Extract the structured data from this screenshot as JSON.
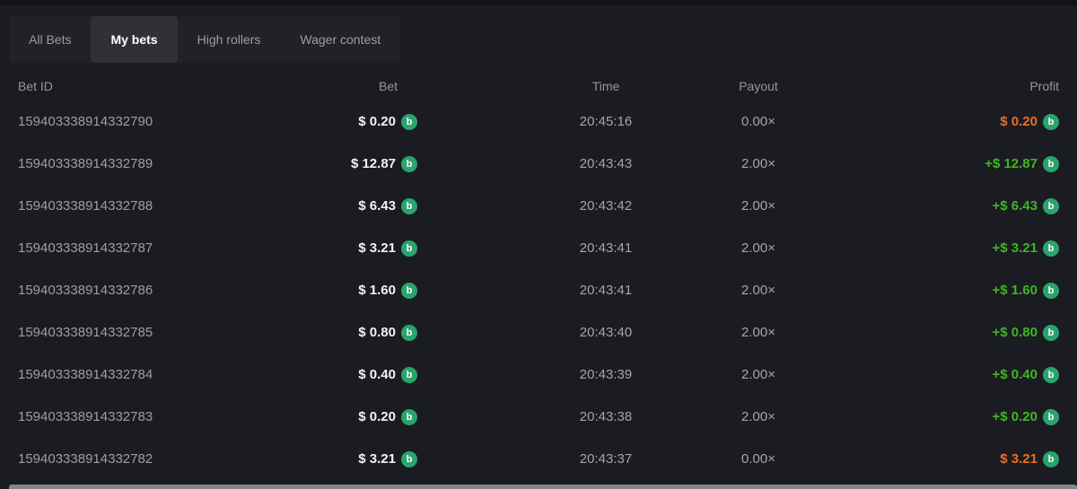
{
  "tabs": {
    "items": [
      {
        "label": "All Bets",
        "active": false
      },
      {
        "label": "My bets",
        "active": true
      },
      {
        "label": "High rollers",
        "active": false
      },
      {
        "label": "Wager contest",
        "active": false
      }
    ]
  },
  "table": {
    "columns": {
      "bet_id": "Bet ID",
      "bet": "Bet",
      "time": "Time",
      "payout": "Payout",
      "profit": "Profit"
    },
    "rows": [
      {
        "bet_id": "159403338914332790",
        "bet": "$ 0.20",
        "time": "20:45:16",
        "payout": "0.00×",
        "profit": "$ 0.20",
        "profit_state": "loss"
      },
      {
        "bet_id": "159403338914332789",
        "bet": "$ 12.87",
        "time": "20:43:43",
        "payout": "2.00×",
        "profit": "+$ 12.87",
        "profit_state": "win"
      },
      {
        "bet_id": "159403338914332788",
        "bet": "$ 6.43",
        "time": "20:43:42",
        "payout": "2.00×",
        "profit": "+$ 6.43",
        "profit_state": "win"
      },
      {
        "bet_id": "159403338914332787",
        "bet": "$ 3.21",
        "time": "20:43:41",
        "payout": "2.00×",
        "profit": "+$ 3.21",
        "profit_state": "win"
      },
      {
        "bet_id": "159403338914332786",
        "bet": "$ 1.60",
        "time": "20:43:41",
        "payout": "2.00×",
        "profit": "+$ 1.60",
        "profit_state": "win"
      },
      {
        "bet_id": "159403338914332785",
        "bet": "$ 0.80",
        "time": "20:43:40",
        "payout": "2.00×",
        "profit": "+$ 0.80",
        "profit_state": "win"
      },
      {
        "bet_id": "159403338914332784",
        "bet": "$ 0.40",
        "time": "20:43:39",
        "payout": "2.00×",
        "profit": "+$ 0.40",
        "profit_state": "win"
      },
      {
        "bet_id": "159403338914332783",
        "bet": "$ 0.20",
        "time": "20:43:38",
        "payout": "2.00×",
        "profit": "+$ 0.20",
        "profit_state": "win"
      },
      {
        "bet_id": "159403338914332782",
        "bet": "$ 3.21",
        "time": "20:43:37",
        "payout": "0.00×",
        "profit": "$ 3.21",
        "profit_state": "loss"
      }
    ]
  },
  "icons": {
    "coin": "coin-icon",
    "coin_glyph": "b"
  },
  "colors": {
    "win": "#3cb81f",
    "loss": "#ea6e20",
    "coin": "#2aa46d"
  }
}
